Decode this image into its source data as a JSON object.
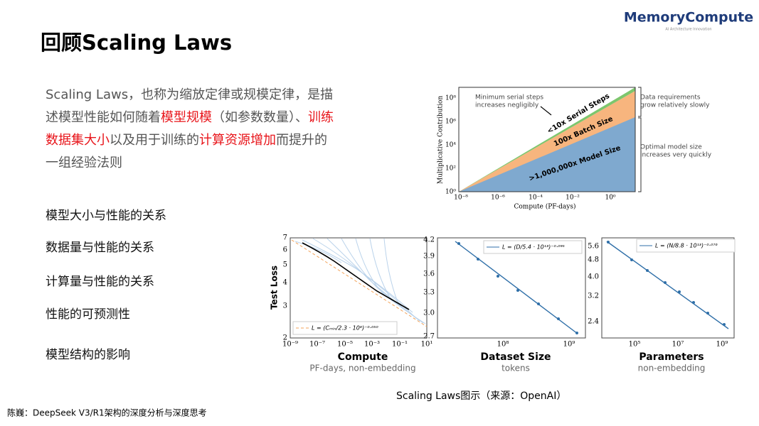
{
  "header": {
    "title": "回顾Scaling Laws",
    "logo": "MemoryCompute",
    "logo_tagline": "AI Architecture Innovation"
  },
  "intro": {
    "segments": [
      {
        "text": "Scaling Laws，也称为缩放定律或规模定律，是描述模型性能如何随着",
        "highlight": false
      },
      {
        "text": "模型规模",
        "highlight": true
      },
      {
        "text": "（如参数数量）、",
        "highlight": false
      },
      {
        "text": "训练数据集大小",
        "highlight": true
      },
      {
        "text": "以及用于训练的",
        "highlight": false
      },
      {
        "text": "计算资源增加",
        "highlight": true
      },
      {
        "text": "而提升的一组经验法则",
        "highlight": false
      }
    ]
  },
  "topics": [
    "模型大小与性能的关系",
    "数据量与性能的关系",
    "计算量与性能的关系",
    "性能的可预测性",
    "模型结构的影响"
  ],
  "figure_top": {
    "ylabel": "Multiplicative Contribution",
    "xlabel": "Compute (PF-days)",
    "yticks": [
      "10⁰",
      "10²",
      "10⁴",
      "10⁶",
      "10⁸"
    ],
    "xticks": [
      "10⁻⁸",
      "10⁻⁶",
      "10⁻⁴",
      "10⁻²",
      "10⁰"
    ],
    "bands": [
      "<10x Serial Steps",
      "100x Batch Size",
      ">1,000,000x Model Size"
    ],
    "note_serial": [
      "Minimum serial steps",
      "increases negligibly"
    ],
    "note_data": [
      "Data requirements",
      "grow relatively slowly"
    ],
    "note_model": [
      "Optimal model size",
      "increases very quickly"
    ]
  },
  "panels": [
    {
      "ylabel": "Test Loss",
      "xlabel": "Compute",
      "sublabel": "PF-days, non-embedding",
      "legend": "L = (Cₘᵢₙ/2.3 · 10⁸)⁻⁰·⁰⁵⁰",
      "yticks": [
        "7",
        "6",
        "5",
        "4",
        "3",
        "2"
      ],
      "xticks": [
        "10⁻⁹",
        "10⁻⁷",
        "10⁻⁵",
        "10⁻³",
        "10⁻¹",
        "10¹"
      ]
    },
    {
      "xlabel": "Dataset Size",
      "sublabel": "tokens",
      "legend": "L = (D/5.4 · 10¹³)⁻⁰·⁰⁹⁵",
      "yticks": [
        "4.2",
        "3.9",
        "3.6",
        "3.3",
        "3.0",
        "2.7"
      ],
      "xticks": [
        "10⁸",
        "10⁹"
      ]
    },
    {
      "xlabel": "Parameters",
      "sublabel": "non-embedding",
      "legend": "L = (N/8.8 · 10¹³)⁻⁰·⁰⁷⁶",
      "yticks": [
        "5.6",
        "4.8",
        "4.0",
        "3.2",
        "2.4"
      ],
      "xticks": [
        "10⁵",
        "10⁷",
        "10⁹"
      ]
    }
  ],
  "caption": "Scaling Laws图示（来源：OpenAI）",
  "footer": "陈巍：DeepSeek V3/R1架构的深度分析与深度思考"
}
